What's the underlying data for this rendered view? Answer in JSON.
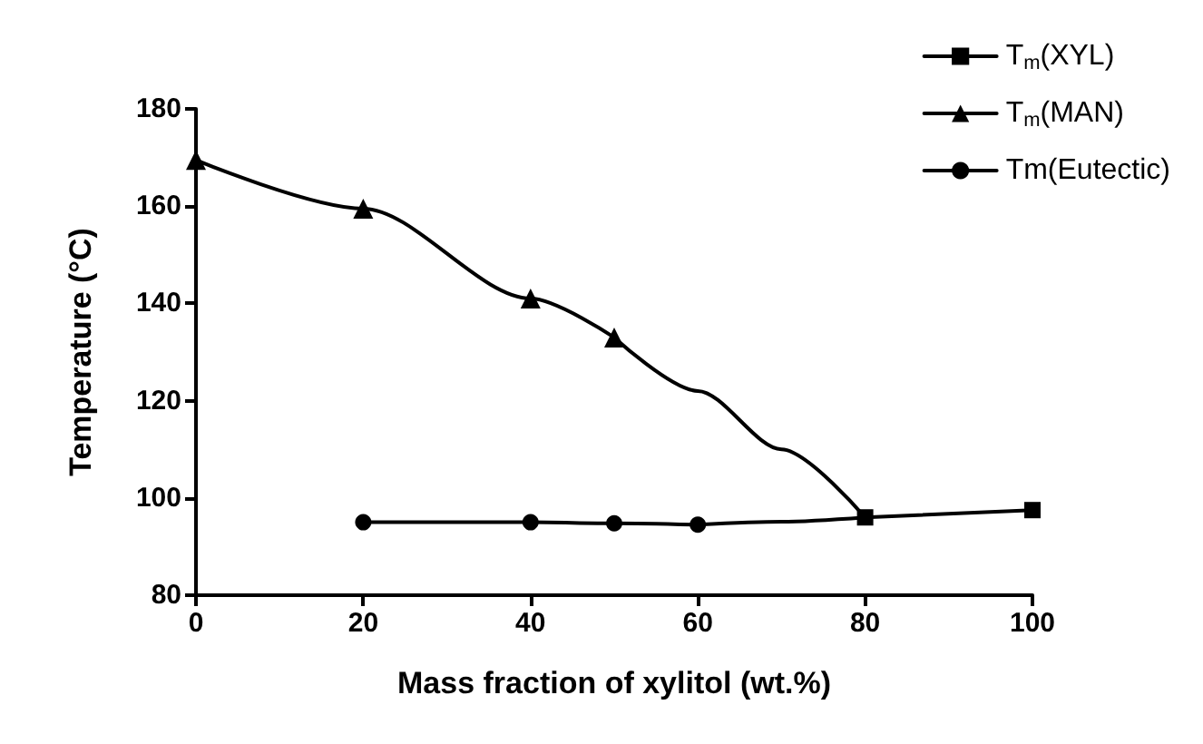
{
  "chart_data": {
    "type": "line",
    "xlabel": "Mass fraction of xylitol (wt.%)",
    "ylabel": "Temperature (°C)",
    "xlim": [
      0,
      100
    ],
    "xticks": [
      0,
      20,
      40,
      60,
      80,
      100
    ],
    "ylim": [
      80,
      180
    ],
    "yticks": [
      80,
      100,
      120,
      140,
      160,
      180
    ],
    "grid": false,
    "legend": "top right",
    "line_style": "solid",
    "series": [
      {
        "name": "T$_{m}$(XYL)",
        "color": "#000000",
        "marker": "square",
        "x": [
          80,
          100
        ],
        "values": [
          96,
          97.5
        ]
      },
      {
        "name": "T$_{m}$(MAN)",
        "color": "#000000",
        "marker": "triangle",
        "x": [
          0,
          20,
          40,
          50
        ],
        "values": [
          169.5,
          159.5,
          141,
          133
        ]
      },
      {
        "name": "Tm(Eutectic)",
        "color": "#000000",
        "marker": "circle",
        "x": [
          20,
          40,
          50,
          60
        ],
        "values": [
          95,
          95,
          94.8,
          94.5
        ]
      },
      {
        "color": "#000000",
        "marker": "none",
        "x": [
          50,
          60,
          70,
          80
        ],
        "values": [
          133,
          122,
          110,
          96
        ]
      },
      {
        "color": "#000000",
        "marker": "none",
        "x": [
          60,
          70,
          80
        ],
        "values": [
          94.5,
          95.1,
          96
        ]
      }
    ]
  }
}
